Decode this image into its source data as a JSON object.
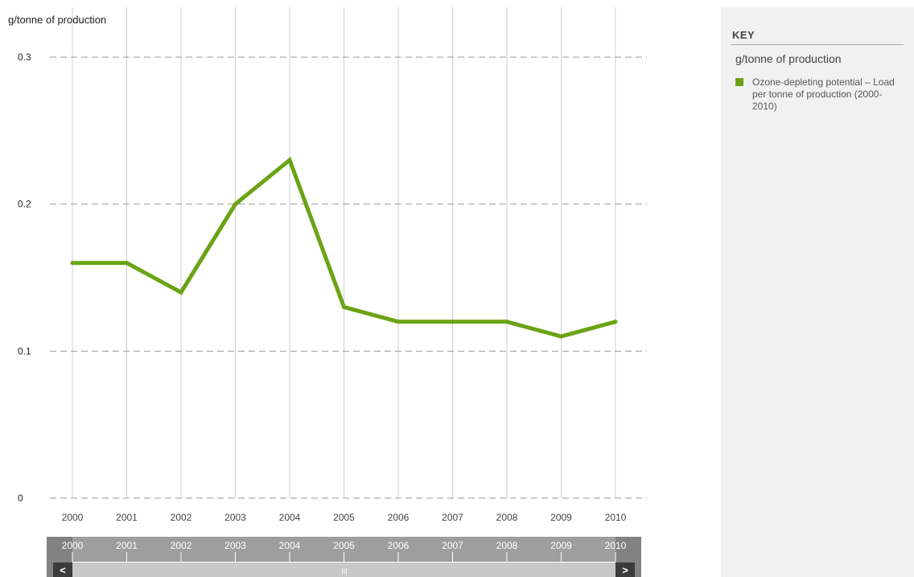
{
  "chart_data": {
    "type": "line",
    "ylabel": "g/tonne of production",
    "x": [
      "2000",
      "2001",
      "2002",
      "2003",
      "2004",
      "2005",
      "2006",
      "2007",
      "2008",
      "2009",
      "2010"
    ],
    "series": [
      {
        "name": "Ozone-depleting potential – Load per tonne of production (2000-2010)",
        "values": [
          0.16,
          0.16,
          0.14,
          0.2,
          0.23,
          0.13,
          0.12,
          0.12,
          0.12,
          0.11,
          0.12
        ],
        "color": "#6aa315"
      }
    ],
    "yticks": [
      "0",
      "0.1",
      "0.2",
      "0.3"
    ],
    "ylim": [
      0,
      0.3
    ],
    "grid": "horizontal dashed, vertical solid",
    "legend_position": "right"
  },
  "key": {
    "title": "KEY",
    "unit": "g/tonne of production",
    "item_label": "Ozone-depleting potential – Load per tonne of production (2000-2010)",
    "swatch_color": "#6aa315"
  },
  "navigator": {
    "labels": [
      "2000",
      "2001",
      "2002",
      "2003",
      "2004",
      "2005",
      "2006",
      "2007",
      "2008",
      "2009",
      "2010"
    ],
    "left_arrow": "<",
    "right_arrow": ">",
    "grip": "III"
  }
}
